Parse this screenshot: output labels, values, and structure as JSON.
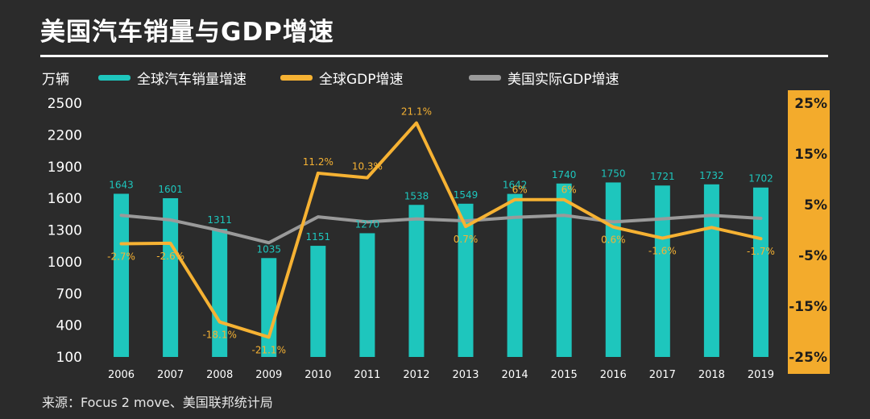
{
  "title": "美国汽车销量与GDP增速",
  "source": "来源：Focus 2 move、美国联邦统计局",
  "colors": {
    "background": "#2b2b2b",
    "bar": "#1ec6bd",
    "global_gdp": "#f6b233",
    "us_gdp": "#9a9a9a",
    "right_axis_band": "#f3ab2c",
    "text": "#ffffff"
  },
  "chart_data": {
    "type": "bar+line",
    "categories": [
      "2006",
      "2007",
      "2008",
      "2009",
      "2010",
      "2011",
      "2012",
      "2013",
      "2014",
      "2015",
      "2016",
      "2017",
      "2018",
      "2019"
    ],
    "left_axis": {
      "unit_label": "万辆",
      "ticks": [
        "2500",
        "2200",
        "1900",
        "1600",
        "1300",
        "1000",
        "700",
        "400",
        "100"
      ],
      "ylim": [
        100,
        2500
      ]
    },
    "right_axis": {
      "ticks": [
        "25%",
        "15%",
        "5%",
        "-5%",
        "-15%",
        "-25%"
      ],
      "ylim": [
        -25,
        25
      ]
    },
    "series": [
      {
        "name": "全球汽车销量增速",
        "kind": "bar",
        "axis": "left",
        "values": [
          1643,
          1601,
          1311,
          1035,
          1151,
          1270,
          1538,
          1549,
          1642,
          1740,
          1750,
          1721,
          1732,
          1702
        ],
        "labels": [
          "1643",
          "1601",
          "1311",
          "1035",
          "1151",
          "1270",
          "1538",
          "1549",
          "1642",
          "1740",
          "1750",
          "1721",
          "1732",
          "1702"
        ]
      },
      {
        "name": "全球GDP增速",
        "kind": "line",
        "axis": "right",
        "values": [
          -2.7,
          -2.6,
          -18.1,
          -21.1,
          11.2,
          10.3,
          21.1,
          0.7,
          6,
          6,
          0.6,
          -1.6,
          0.5,
          -1.7
        ],
        "labels": [
          "-2.7%",
          "-2.6%",
          "-18.1%",
          "-21.1%",
          "11.2%",
          "10.3%",
          "21.1%",
          "0.7%",
          "6%",
          "6%",
          "0.6%",
          "-1.6%",
          "",
          "-1.7%"
        ]
      },
      {
        "name": "美国实际GDP增速",
        "kind": "line",
        "axis": "right",
        "values": [
          2.9,
          2.0,
          -0.1,
          -2.5,
          2.6,
          1.6,
          2.2,
          1.8,
          2.5,
          2.9,
          1.6,
          2.2,
          2.9,
          2.3
        ]
      }
    ]
  }
}
